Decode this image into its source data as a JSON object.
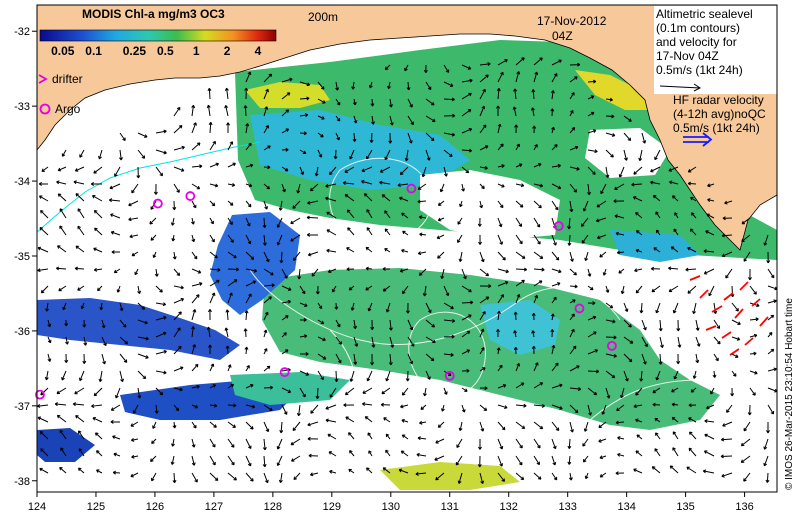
{
  "colorbar": {
    "title": "MODIS Chl-a mg/m3 OC3",
    "ticks": [
      "0.05",
      "0.1",
      "0.25",
      "0.5",
      "1",
      "2",
      "4"
    ]
  },
  "isobath_label": "200m",
  "date_label": "17-Nov-2012",
  "time_label": "04Z",
  "markers": {
    "drifter": "drifter",
    "argo": "Argo"
  },
  "legend_altimetry": {
    "lines": [
      "Altimetric sealevel",
      "(0.1m contours)",
      "and velocity for",
      "17-Nov 04Z",
      "0.5m/s (1kt 24h)"
    ]
  },
  "legend_hf_radar": {
    "lines": [
      "HF radar velocity",
      "(4-12h avg)noQC",
      "0.5m/s (1kt 24h)"
    ]
  },
  "credit": "© IMOS 26-Mar-2015 23:10:54 Hobart time",
  "axes": {
    "lon_ticks": [
      "124",
      "125",
      "126",
      "127",
      "128",
      "129",
      "130",
      "131",
      "132",
      "133",
      "134",
      "135",
      "136"
    ],
    "lat_ticks": [
      "-32",
      "-33",
      "-34",
      "-35",
      "-36",
      "-37",
      "-38"
    ]
  },
  "colors": {
    "land": "#f6c89a",
    "ocean_cloud": "#ffffff",
    "chl_blue": "#2a68d8",
    "chl_cyan": "#27b7d8",
    "chl_green": "#37b46a",
    "chl_yellow": "#dcdc28",
    "argo_marker": "#e600e6",
    "hf_radar_vector": "#ff0000",
    "contour": "#ffffff",
    "isobath": "#00e5e5"
  },
  "argo_floats": [
    {
      "lon": 124.05,
      "lat": -36.85
    },
    {
      "lon": 126.05,
      "lat": -34.3
    },
    {
      "lon": 126.6,
      "lat": -34.2
    },
    {
      "lon": 128.2,
      "lat": -36.55
    },
    {
      "lon": 130.35,
      "lat": -34.1
    },
    {
      "lon": 131.0,
      "lat": -36.6
    },
    {
      "lon": 132.85,
      "lat": -34.6
    },
    {
      "lon": 133.2,
      "lat": -35.7
    },
    {
      "lon": 133.75,
      "lat": -36.2
    }
  ]
}
